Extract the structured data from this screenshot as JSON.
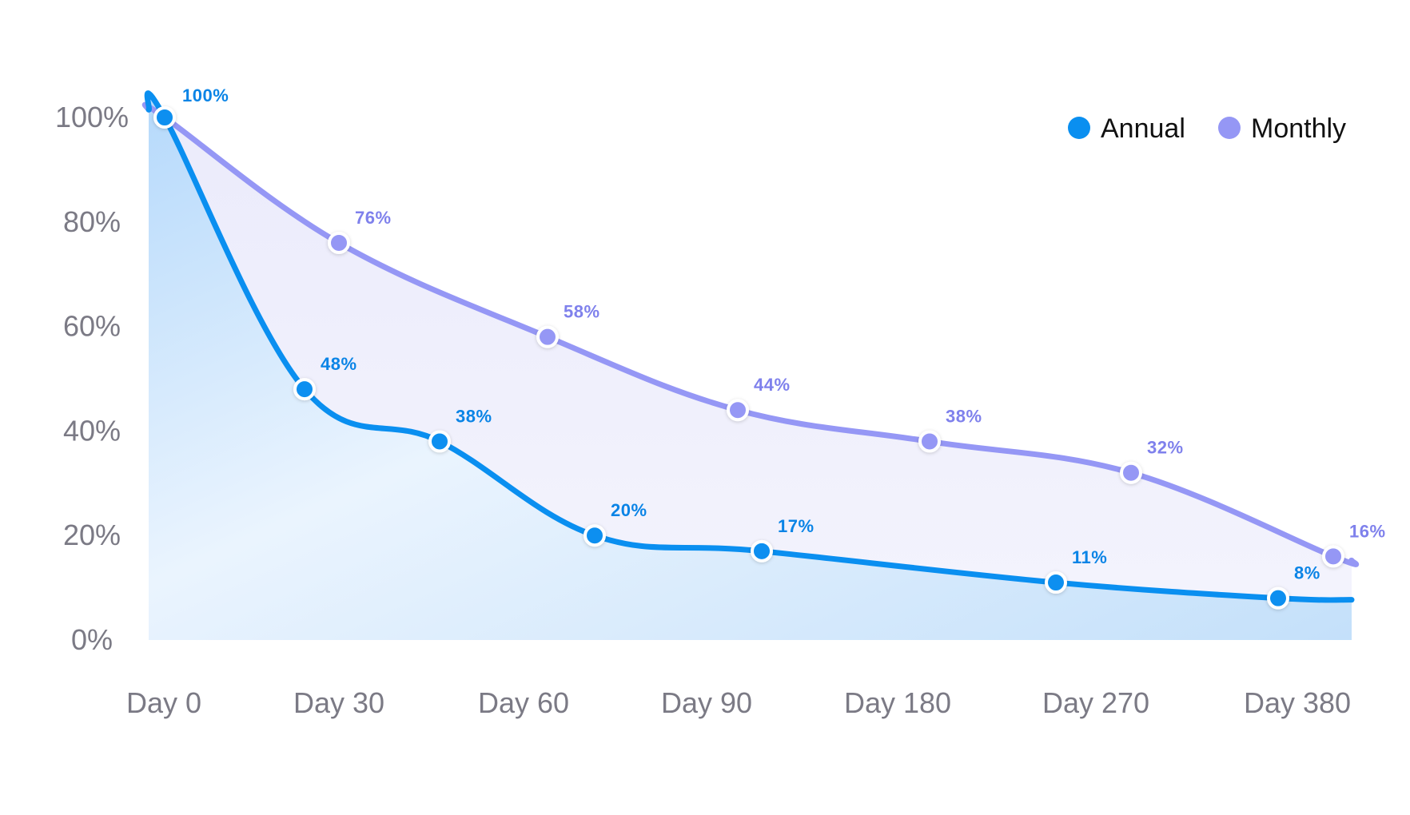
{
  "chart_data": {
    "type": "area",
    "title": "",
    "xlabel": "",
    "ylabel": "",
    "categories": [
      "Day 0",
      "Day 30",
      "Day 60",
      "Day 90",
      "Day 180",
      "Day 270",
      "Day 380"
    ],
    "yticks": [
      "0%",
      "20%",
      "40%",
      "60%",
      "80%",
      "100%"
    ],
    "ylim": [
      0,
      100
    ],
    "grid": false,
    "legend_position": "top-right",
    "series": [
      {
        "name": "Annual",
        "color": "#0a8ff0",
        "values": [
          100,
          48,
          38,
          20,
          17,
          11,
          8
        ],
        "labels": [
          "100%",
          "48%",
          "38%",
          "20%",
          "17%",
          "11%",
          "8%"
        ]
      },
      {
        "name": "Monthly",
        "color": "#9597f5",
        "values": [
          100,
          76,
          58,
          44,
          38,
          32,
          16
        ],
        "labels": [
          "",
          "76%",
          "58%",
          "44%",
          "38%",
          "32%",
          "16%"
        ]
      }
    ]
  }
}
